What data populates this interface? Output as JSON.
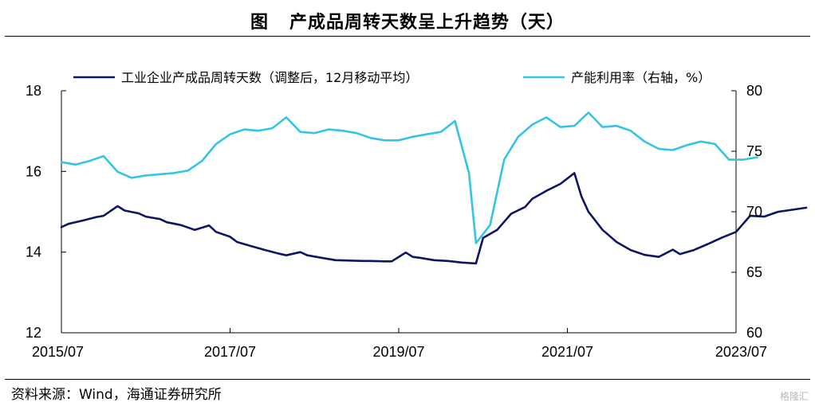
{
  "header": {
    "prefix": "图",
    "title": "产成品周转天数呈上升趋势（天）"
  },
  "footer": {
    "source": "资料来源：Wind，海通证券研究所",
    "watermark": "格隆汇"
  },
  "colors": {
    "left_series": "#0d1566",
    "right_series": "#33c4e8",
    "axis": "#000000"
  },
  "chart_data": {
    "type": "line",
    "x_ticks": [
      "2015/07",
      "2017/07",
      "2019/07",
      "2021/07",
      "2023/07"
    ],
    "y_left": {
      "ticks": [
        "12",
        "14",
        "16",
        "18"
      ],
      "lim": [
        12,
        18
      ]
    },
    "y_right": {
      "ticks": [
        "60",
        "65",
        "70",
        "75",
        "80"
      ],
      "lim": [
        60,
        80
      ]
    },
    "legend_position": "top",
    "series": [
      {
        "name": "工业企业产成品周转天数（调整后，12月移动平均）",
        "axis": "left",
        "points": [
          [
            "2015-07",
            14.62
          ],
          [
            "2015-08",
            14.7
          ],
          [
            "2015-10",
            14.78
          ],
          [
            "2015-12",
            14.87
          ],
          [
            "2016-01",
            14.9
          ],
          [
            "2016-03",
            15.14
          ],
          [
            "2016-04",
            15.03
          ],
          [
            "2016-06",
            14.96
          ],
          [
            "2016-07",
            14.88
          ],
          [
            "2016-09",
            14.82
          ],
          [
            "2016-10",
            14.74
          ],
          [
            "2016-12",
            14.67
          ],
          [
            "2017-02",
            14.55
          ],
          [
            "2017-04",
            14.66
          ],
          [
            "2017-05",
            14.5
          ],
          [
            "2017-07",
            14.38
          ],
          [
            "2017-08",
            14.25
          ],
          [
            "2017-10",
            14.15
          ],
          [
            "2017-12",
            14.05
          ],
          [
            "2018-02",
            13.96
          ],
          [
            "2018-03",
            13.92
          ],
          [
            "2018-05",
            14.0
          ],
          [
            "2018-06",
            13.92
          ],
          [
            "2018-08",
            13.86
          ],
          [
            "2018-10",
            13.8
          ],
          [
            "2018-12",
            13.79
          ],
          [
            "2019-02",
            13.78
          ],
          [
            "2019-03",
            13.78
          ],
          [
            "2019-05",
            13.77
          ],
          [
            "2019-06",
            13.77
          ],
          [
            "2019-08",
            13.99
          ],
          [
            "2019-09",
            13.88
          ],
          [
            "2019-10",
            13.86
          ],
          [
            "2019-12",
            13.8
          ],
          [
            "2020-02",
            13.78
          ],
          [
            "2020-04",
            13.74
          ],
          [
            "2020-06",
            13.72
          ],
          [
            "2020-07",
            14.35
          ],
          [
            "2020-09",
            14.55
          ],
          [
            "2020-11",
            14.95
          ],
          [
            "2021-01",
            15.12
          ],
          [
            "2021-02",
            15.32
          ],
          [
            "2021-04",
            15.52
          ],
          [
            "2021-06",
            15.69
          ],
          [
            "2021-08",
            15.96
          ],
          [
            "2021-09",
            15.38
          ],
          [
            "2021-10",
            15.0
          ],
          [
            "2021-12",
            14.55
          ],
          [
            "2022-02",
            14.25
          ],
          [
            "2022-04",
            14.05
          ],
          [
            "2022-06",
            13.93
          ],
          [
            "2022-08",
            13.88
          ],
          [
            "2022-10",
            14.06
          ],
          [
            "2022-11",
            13.95
          ],
          [
            "2023-01",
            14.05
          ],
          [
            "2023-03",
            14.2
          ],
          [
            "2023-05",
            14.36
          ],
          [
            "2023-07",
            14.5
          ],
          [
            "2023-09",
            14.9
          ],
          [
            "2023-11",
            14.88
          ],
          [
            "2024-01",
            15.0
          ],
          [
            "2024-03",
            15.05
          ],
          [
            "2024-05",
            15.1
          ]
        ]
      },
      {
        "name": "产能利用率（右轴，%）",
        "axis": "right",
        "points": [
          [
            "2015-07",
            74.1
          ],
          [
            "2015-09",
            73.9
          ],
          [
            "2015-11",
            74.2
          ],
          [
            "2016-01",
            74.6
          ],
          [
            "2016-03",
            73.3
          ],
          [
            "2016-05",
            72.8
          ],
          [
            "2016-07",
            73.0
          ],
          [
            "2016-09",
            73.1
          ],
          [
            "2016-11",
            73.2
          ],
          [
            "2017-01",
            73.4
          ],
          [
            "2017-03",
            74.2
          ],
          [
            "2017-05",
            75.6
          ],
          [
            "2017-07",
            76.4
          ],
          [
            "2017-09",
            76.8
          ],
          [
            "2017-11",
            76.7
          ],
          [
            "2018-01",
            76.9
          ],
          [
            "2018-03",
            77.8
          ],
          [
            "2018-05",
            76.6
          ],
          [
            "2018-07",
            76.5
          ],
          [
            "2018-09",
            76.8
          ],
          [
            "2018-11",
            76.7
          ],
          [
            "2019-01",
            76.5
          ],
          [
            "2019-03",
            76.1
          ],
          [
            "2019-05",
            75.9
          ],
          [
            "2019-07",
            75.9
          ],
          [
            "2019-09",
            76.2
          ],
          [
            "2019-11",
            76.4
          ],
          [
            "2020-01",
            76.6
          ],
          [
            "2020-03",
            77.5
          ],
          [
            "2020-05",
            73.2
          ],
          [
            "2020-06",
            67.4
          ],
          [
            "2020-08",
            68.9
          ],
          [
            "2020-10",
            74.3
          ],
          [
            "2020-12",
            76.2
          ],
          [
            "2021-02",
            77.2
          ],
          [
            "2021-04",
            77.8
          ],
          [
            "2021-06",
            77.0
          ],
          [
            "2021-08",
            77.1
          ],
          [
            "2021-10",
            78.2
          ],
          [
            "2021-12",
            77.0
          ],
          [
            "2022-02",
            77.1
          ],
          [
            "2022-04",
            76.7
          ],
          [
            "2022-06",
            75.8
          ],
          [
            "2022-08",
            75.2
          ],
          [
            "2022-10",
            75.1
          ],
          [
            "2022-12",
            75.5
          ],
          [
            "2023-02",
            75.8
          ],
          [
            "2023-04",
            75.6
          ],
          [
            "2023-06",
            74.3
          ],
          [
            "2023-08",
            74.3
          ],
          [
            "2023-10",
            74.5
          ]
        ]
      }
    ]
  }
}
